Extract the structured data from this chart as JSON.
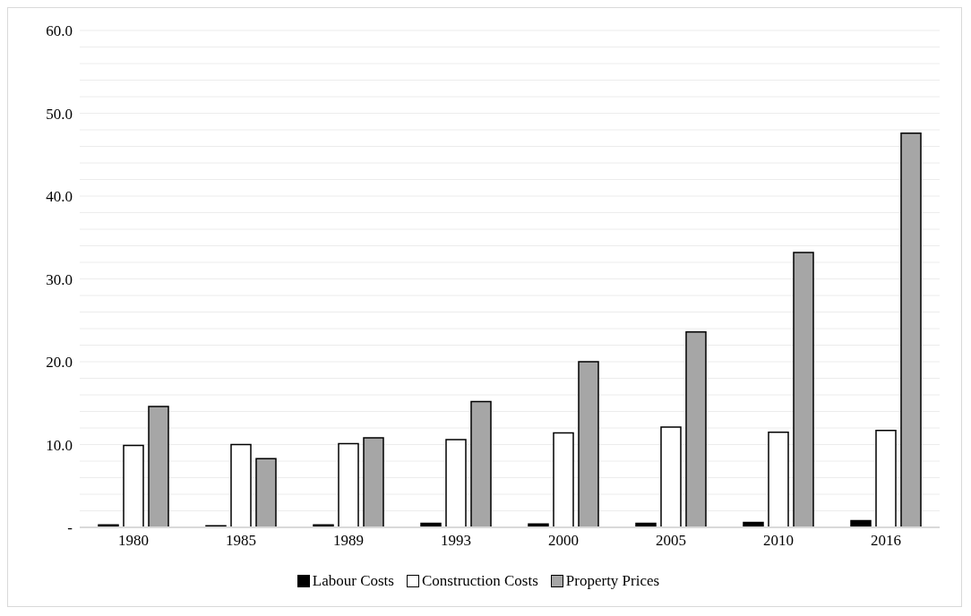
{
  "chart_data": {
    "type": "bar",
    "categories": [
      "1980",
      "1985",
      "1989",
      "1993",
      "2000",
      "2005",
      "2010",
      "2016"
    ],
    "series": [
      {
        "name": "Labour Costs",
        "color": "#000000",
        "values": [
          0.3,
          0.2,
          0.3,
          0.5,
          0.4,
          0.5,
          0.6,
          0.8
        ]
      },
      {
        "name": "Construction Costs",
        "color": "#ffffff",
        "values": [
          9.9,
          10.0,
          10.1,
          10.6,
          11.4,
          12.1,
          11.5,
          11.7
        ]
      },
      {
        "name": "Property Prices",
        "color": "#a6a6a6",
        "values": [
          14.6,
          8.3,
          10.8,
          15.2,
          20.0,
          23.6,
          33.2,
          47.6
        ]
      }
    ],
    "ylim": [
      0,
      60
    ],
    "yticks": [
      {
        "value": 0,
        "label": "-"
      },
      {
        "value": 2,
        "label": null
      },
      {
        "value": 4,
        "label": null
      },
      {
        "value": 6,
        "label": null
      },
      {
        "value": 8,
        "label": null
      },
      {
        "value": 10,
        "label": "10.0"
      },
      {
        "value": 12,
        "label": null
      },
      {
        "value": 14,
        "label": null
      },
      {
        "value": 16,
        "label": null
      },
      {
        "value": 18,
        "label": null
      },
      {
        "value": 20,
        "label": "20.0"
      },
      {
        "value": 22,
        "label": null
      },
      {
        "value": 24,
        "label": null
      },
      {
        "value": 26,
        "label": null
      },
      {
        "value": 28,
        "label": null
      },
      {
        "value": 30,
        "label": "30.0"
      },
      {
        "value": 32,
        "label": null
      },
      {
        "value": 34,
        "label": null
      },
      {
        "value": 36,
        "label": null
      },
      {
        "value": 38,
        "label": null
      },
      {
        "value": 40,
        "label": "40.0"
      },
      {
        "value": 42,
        "label": null
      },
      {
        "value": 44,
        "label": null
      },
      {
        "value": 46,
        "label": null
      },
      {
        "value": 48,
        "label": null
      },
      {
        "value": 50,
        "label": "50.0"
      },
      {
        "value": 52,
        "label": null
      },
      {
        "value": 54,
        "label": null
      },
      {
        "value": 56,
        "label": null
      },
      {
        "value": 58,
        "label": null
      },
      {
        "value": 60,
        "label": "60.0"
      }
    ],
    "grid": "y",
    "legend": "bottom"
  }
}
